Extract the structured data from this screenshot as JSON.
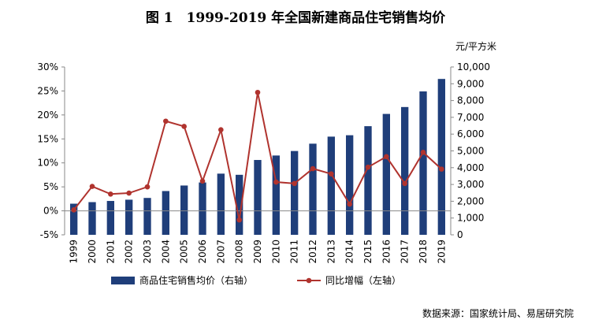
{
  "title": "图 1　1999-2019 年全国新建商品住宅销售均价",
  "unit_label": "元/平方米",
  "source": "数据来源：国家统计局、易居研究院",
  "chart_data": {
    "type": "bar",
    "categories": [
      "1999",
      "2000",
      "2001",
      "2002",
      "2003",
      "2004",
      "2005",
      "2006",
      "2007",
      "2008",
      "2009",
      "2010",
      "2011",
      "2012",
      "2013",
      "2014",
      "2015",
      "2016",
      "2017",
      "2018",
      "2019"
    ],
    "series": [
      {
        "name": "商品住宅销售均价（右轴）",
        "type": "bar",
        "axis": "right",
        "color": "#1F3E7A",
        "values": [
          1854,
          1948,
          2017,
          2092,
          2197,
          2608,
          2937,
          3119,
          3645,
          3576,
          4459,
          4725,
          4993,
          5430,
          5850,
          5933,
          6473,
          7203,
          7614,
          8544,
          9287
        ]
      },
      {
        "name": "同比增幅（左轴）",
        "type": "line",
        "axis": "left",
        "color": "#B0332E",
        "values": [
          0.2,
          5.1,
          3.5,
          3.7,
          5.0,
          18.7,
          17.6,
          6.2,
          16.9,
          -1.9,
          24.7,
          6.0,
          5.7,
          8.8,
          7.7,
          1.4,
          9.1,
          11.3,
          5.7,
          12.2,
          8.7
        ]
      }
    ],
    "left_axis": {
      "min": -5,
      "max": 30,
      "step": 5,
      "ticks": [
        "-5%",
        "0%",
        "5%",
        "10%",
        "15%",
        "20%",
        "25%",
        "30%"
      ]
    },
    "right_axis": {
      "min": 0,
      "max": 10000,
      "step": 1000,
      "ticks": [
        "0",
        "1,000",
        "2,000",
        "3,000",
        "4,000",
        "5,000",
        "6,000",
        "7,000",
        "8,000",
        "9,000",
        "10,000"
      ]
    },
    "grid": false,
    "legend_position": "bottom"
  }
}
